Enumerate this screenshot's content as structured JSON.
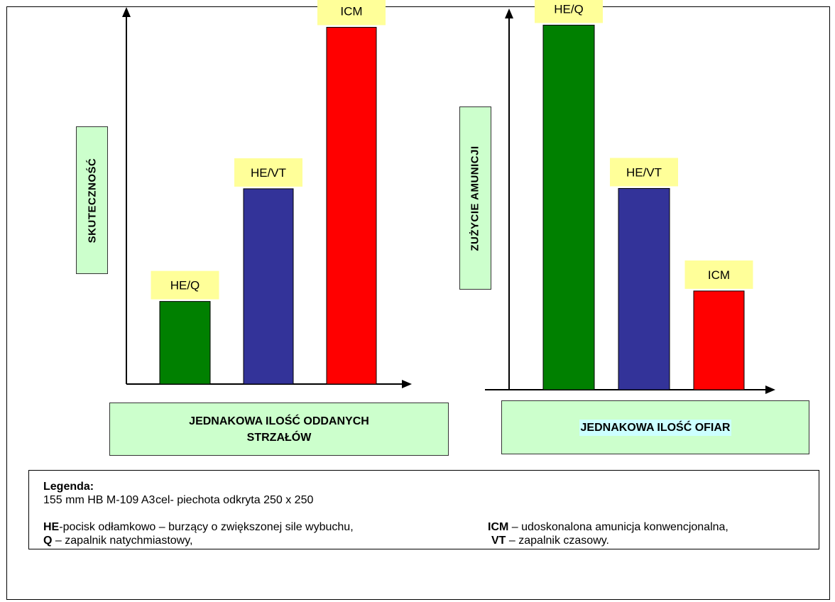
{
  "colors": {
    "green": "#008000",
    "blue": "#333399",
    "red": "#ff0000",
    "bar_label_bg": "#ffff99",
    "axis_label_bg": "#ccffcc",
    "highlight_bg": "#ccffff"
  },
  "chart_data": [
    {
      "type": "bar",
      "ylabel": "SKUTECZNOŚĆ",
      "xlabel": "JEDNAKOWA ILOŚĆ ODDANYCH STRZAŁÓW",
      "categories": [
        "HE/Q",
        "HE/VT",
        "ICM"
      ],
      "values": [
        22,
        52,
        95
      ],
      "ylim": [
        0,
        100
      ],
      "colors": [
        "#008000",
        "#333399",
        "#ff0000"
      ],
      "grid": false,
      "legend": "none"
    },
    {
      "type": "bar",
      "ylabel": "ZUŻYCIE AMUNICJI",
      "xlabel": "JEDNAKOWA ILOŚĆ OFIAR",
      "categories": [
        "HE/Q",
        "HE/VT",
        "ICM"
      ],
      "values": [
        96,
        53,
        26
      ],
      "ylim": [
        0,
        100
      ],
      "colors": [
        "#008000",
        "#333399",
        "#ff0000"
      ],
      "grid": false,
      "legend": "none"
    }
  ],
  "legend": {
    "title": "Legenda:",
    "line1_left": "155 mm HB M-109 A3",
    "line1_right": "cel- piechota odkryta 250 x 250",
    "he_term": "HE",
    "he_text": "-pocisk odłamkowo – burzący o zwiększonej sile wybuchu,",
    "q_term": "Q",
    "q_text": " – zapalnik natychmiastowy,",
    "icm_term": "ICM",
    "icm_text": " – udoskonalona amunicja konwencjonalna,",
    "vt_term": "VT",
    "vt_text": " – zapalnik czasowy."
  }
}
